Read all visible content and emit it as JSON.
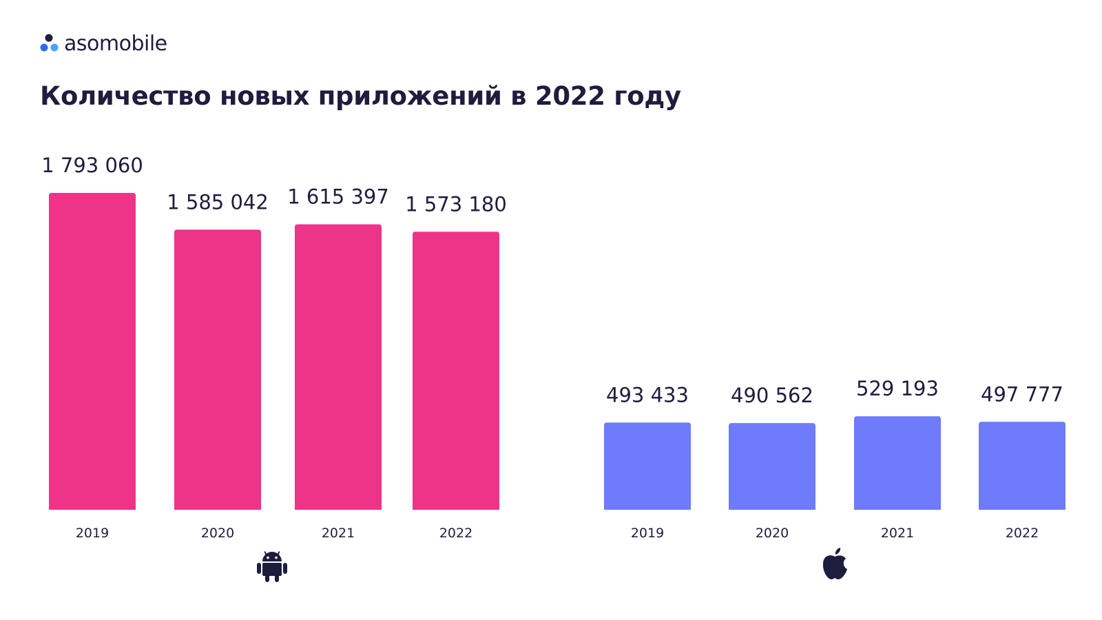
{
  "brand": {
    "name": "asomobile",
    "logo_icon": "asomobile-dots-icon",
    "logo_colors": [
      "#1f1d3d",
      "#2a6cf0",
      "#4ba3ff"
    ]
  },
  "title": "Количество новых приложений в 2022 году",
  "colors": {
    "android": "#ee3488",
    "ios": "#6e7bfb",
    "text": "#1f1d3d"
  },
  "chart_data": [
    {
      "type": "bar",
      "platform_icon": "android-icon",
      "categories": [
        "2019",
        "2020",
        "2021",
        "2022"
      ],
      "values": [
        1793060,
        1585042,
        1615397,
        1573180
      ],
      "value_labels": [
        "1 793 060",
        "1 585 042",
        "1 615 397",
        "1 573 180"
      ],
      "color": "#ee3488"
    },
    {
      "type": "bar",
      "platform_icon": "apple-icon",
      "categories": [
        "2019",
        "2020",
        "2021",
        "2022"
      ],
      "values": [
        493433,
        490562,
        529193,
        497777
      ],
      "value_labels": [
        "493 433",
        "490 562",
        "529 193",
        "497 777"
      ],
      "color": "#6e7bfb"
    }
  ]
}
